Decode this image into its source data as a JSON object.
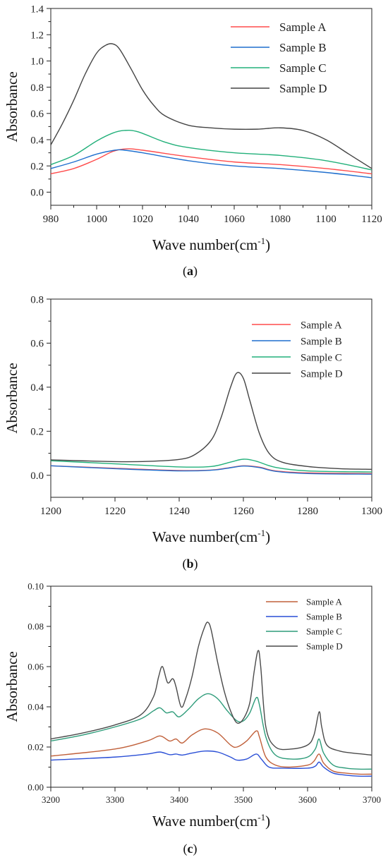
{
  "chart_data": [
    {
      "type": "line",
      "panel_label": "a",
      "xlabel": "Wave number(cm",
      "xlabel_sup": "-1",
      "xlabel_close": ")",
      "ylabel": "Absorbance",
      "xlim": [
        980,
        1120
      ],
      "ylim": [
        -0.1,
        1.4
      ],
      "xticks": [
        980,
        1000,
        1020,
        1040,
        1060,
        1080,
        1100,
        1120
      ],
      "yticks": [
        0.0,
        0.2,
        0.4,
        0.6,
        0.8,
        1.0,
        1.2,
        1.4
      ],
      "ytick_labels": [
        "0.0",
        "0.2",
        "0.4",
        "0.6",
        "0.8",
        "1.0",
        "1.2",
        "1.4"
      ],
      "legend_position": "top-right",
      "series": [
        {
          "name": "Sample A",
          "color": "#ff4b4b",
          "points": [
            [
              980,
              0.14
            ],
            [
              990,
              0.18
            ],
            [
              1000,
              0.25
            ],
            [
              1007,
              0.31
            ],
            [
              1013,
              0.33
            ],
            [
              1020,
              0.32
            ],
            [
              1040,
              0.27
            ],
            [
              1060,
              0.23
            ],
            [
              1080,
              0.21
            ],
            [
              1100,
              0.18
            ],
            [
              1120,
              0.14
            ]
          ]
        },
        {
          "name": "Sample B",
          "color": "#1f6fce",
          "points": [
            [
              980,
              0.18
            ],
            [
              990,
              0.23
            ],
            [
              1000,
              0.29
            ],
            [
              1008,
              0.32
            ],
            [
              1012,
              0.32
            ],
            [
              1020,
              0.3
            ],
            [
              1040,
              0.24
            ],
            [
              1060,
              0.2
            ],
            [
              1080,
              0.18
            ],
            [
              1100,
              0.15
            ],
            [
              1120,
              0.11
            ]
          ]
        },
        {
          "name": "Sample C",
          "color": "#22b07a",
          "points": [
            [
              980,
              0.21
            ],
            [
              990,
              0.28
            ],
            [
              1000,
              0.39
            ],
            [
              1007,
              0.45
            ],
            [
              1012,
              0.47
            ],
            [
              1018,
              0.46
            ],
            [
              1030,
              0.38
            ],
            [
              1040,
              0.34
            ],
            [
              1060,
              0.3
            ],
            [
              1080,
              0.28
            ],
            [
              1100,
              0.24
            ],
            [
              1120,
              0.17
            ]
          ]
        },
        {
          "name": "Sample D",
          "color": "#444444",
          "points": [
            [
              980,
              0.36
            ],
            [
              985,
              0.52
            ],
            [
              990,
              0.7
            ],
            [
              995,
              0.9
            ],
            [
              1000,
              1.06
            ],
            [
              1004,
              1.12
            ],
            [
              1007,
              1.13
            ],
            [
              1010,
              1.09
            ],
            [
              1015,
              0.94
            ],
            [
              1020,
              0.78
            ],
            [
              1025,
              0.66
            ],
            [
              1030,
              0.58
            ],
            [
              1040,
              0.51
            ],
            [
              1050,
              0.49
            ],
            [
              1060,
              0.48
            ],
            [
              1070,
              0.48
            ],
            [
              1080,
              0.49
            ],
            [
              1090,
              0.47
            ],
            [
              1100,
              0.4
            ],
            [
              1110,
              0.29
            ],
            [
              1120,
              0.18
            ]
          ]
        }
      ]
    },
    {
      "type": "line",
      "panel_label": "b",
      "xlabel": "Wave number(cm",
      "xlabel_sup": "-1",
      "xlabel_close": ")",
      "ylabel": "Absorbance",
      "xlim": [
        1200,
        1300
      ],
      "ylim": [
        -0.1,
        0.8
      ],
      "xticks": [
        1200,
        1220,
        1240,
        1260,
        1280,
        1300
      ],
      "yticks": [
        0.0,
        0.2,
        0.4,
        0.6,
        0.8
      ],
      "ytick_labels": [
        "0.0",
        "0.2",
        "0.4",
        "0.6",
        "0.8"
      ],
      "legend_position": "top-right",
      "series": [
        {
          "name": "Sample A",
          "color": "#ff4b4b",
          "points": [
            [
              1200,
              0.043
            ],
            [
              1220,
              0.032
            ],
            [
              1240,
              0.022
            ],
            [
              1250,
              0.024
            ],
            [
              1255,
              0.033
            ],
            [
              1260,
              0.043
            ],
            [
              1265,
              0.037
            ],
            [
              1270,
              0.02
            ],
            [
              1280,
              0.011
            ],
            [
              1300,
              0.008
            ]
          ]
        },
        {
          "name": "Sample B",
          "color": "#1f6fce",
          "points": [
            [
              1200,
              0.043
            ],
            [
              1220,
              0.03
            ],
            [
              1240,
              0.02
            ],
            [
              1250,
              0.023
            ],
            [
              1255,
              0.032
            ],
            [
              1260,
              0.042
            ],
            [
              1265,
              0.035
            ],
            [
              1270,
              0.018
            ],
            [
              1280,
              0.008
            ],
            [
              1300,
              0.005
            ]
          ]
        },
        {
          "name": "Sample C",
          "color": "#22b07a",
          "points": [
            [
              1200,
              0.066
            ],
            [
              1220,
              0.052
            ],
            [
              1240,
              0.038
            ],
            [
              1250,
              0.04
            ],
            [
              1256,
              0.06
            ],
            [
              1260,
              0.073
            ],
            [
              1264,
              0.064
            ],
            [
              1270,
              0.036
            ],
            [
              1280,
              0.02
            ],
            [
              1300,
              0.015
            ]
          ]
        },
        {
          "name": "Sample D",
          "color": "#444444",
          "points": [
            [
              1200,
              0.07
            ],
            [
              1220,
              0.062
            ],
            [
              1230,
              0.063
            ],
            [
              1240,
              0.072
            ],
            [
              1245,
              0.095
            ],
            [
              1250,
              0.16
            ],
            [
              1253,
              0.26
            ],
            [
              1256,
              0.4
            ],
            [
              1258,
              0.465
            ],
            [
              1260,
              0.44
            ],
            [
              1262,
              0.34
            ],
            [
              1265,
              0.19
            ],
            [
              1268,
              0.1
            ],
            [
              1272,
              0.06
            ],
            [
              1280,
              0.04
            ],
            [
              1290,
              0.03
            ],
            [
              1300,
              0.027
            ]
          ]
        }
      ]
    },
    {
      "type": "line",
      "panel_label": "c",
      "xlabel": "Wave number(cm",
      "xlabel_sup": "-1",
      "xlabel_close": ")",
      "ylabel": "Absorbance",
      "xlim": [
        3200,
        3700
      ],
      "ylim": [
        0.0,
        0.1
      ],
      "xticks": [
        3200,
        3300,
        3400,
        3500,
        3600,
        3700
      ],
      "yticks": [
        0.0,
        0.02,
        0.04,
        0.06,
        0.08,
        0.1
      ],
      "ytick_labels": [
        "0.00",
        "0.02",
        "0.04",
        "0.06",
        "0.08",
        "0.10"
      ],
      "legend_position": "top-right",
      "series": [
        {
          "name": "Sample A",
          "color": "#c0603a",
          "points": [
            [
              3200,
              0.0155
            ],
            [
              3300,
              0.019
            ],
            [
              3350,
              0.023
            ],
            [
              3370,
              0.0255
            ],
            [
              3385,
              0.023
            ],
            [
              3395,
              0.024
            ],
            [
              3405,
              0.022
            ],
            [
              3420,
              0.026
            ],
            [
              3440,
              0.029
            ],
            [
              3460,
              0.027
            ],
            [
              3480,
              0.021
            ],
            [
              3490,
              0.02
            ],
            [
              3505,
              0.023
            ],
            [
              3520,
              0.028
            ],
            [
              3525,
              0.025
            ],
            [
              3535,
              0.015
            ],
            [
              3550,
              0.011
            ],
            [
              3570,
              0.01
            ],
            [
              3600,
              0.011
            ],
            [
              3610,
              0.013
            ],
            [
              3618,
              0.0165
            ],
            [
              3625,
              0.012
            ],
            [
              3640,
              0.008
            ],
            [
              3660,
              0.007
            ],
            [
              3680,
              0.0065
            ],
            [
              3700,
              0.0065
            ]
          ]
        },
        {
          "name": "Sample B",
          "color": "#2a4fd6",
          "points": [
            [
              3200,
              0.0135
            ],
            [
              3300,
              0.015
            ],
            [
              3350,
              0.0165
            ],
            [
              3370,
              0.0175
            ],
            [
              3385,
              0.0162
            ],
            [
              3395,
              0.0165
            ],
            [
              3405,
              0.016
            ],
            [
              3420,
              0.017
            ],
            [
              3440,
              0.018
            ],
            [
              3460,
              0.0175
            ],
            [
              3480,
              0.015
            ],
            [
              3490,
              0.0135
            ],
            [
              3505,
              0.014
            ],
            [
              3520,
              0.0165
            ],
            [
              3528,
              0.014
            ],
            [
              3540,
              0.01
            ],
            [
              3560,
              0.0095
            ],
            [
              3600,
              0.0095
            ],
            [
              3612,
              0.0105
            ],
            [
              3618,
              0.0125
            ],
            [
              3625,
              0.01
            ],
            [
              3640,
              0.007
            ],
            [
              3660,
              0.006
            ],
            [
              3680,
              0.0055
            ],
            [
              3700,
              0.0055
            ]
          ]
        },
        {
          "name": "Sample C",
          "color": "#2e9c7a",
          "points": [
            [
              3200,
              0.023
            ],
            [
              3250,
              0.026
            ],
            [
              3300,
              0.03
            ],
            [
              3340,
              0.034
            ],
            [
              3360,
              0.038
            ],
            [
              3370,
              0.0395
            ],
            [
              3380,
              0.037
            ],
            [
              3390,
              0.0375
            ],
            [
              3400,
              0.035
            ],
            [
              3415,
              0.039
            ],
            [
              3430,
              0.044
            ],
            [
              3445,
              0.0465
            ],
            [
              3460,
              0.044
            ],
            [
              3475,
              0.038
            ],
            [
              3490,
              0.033
            ],
            [
              3500,
              0.033
            ],
            [
              3510,
              0.037
            ],
            [
              3520,
              0.0445
            ],
            [
              3525,
              0.041
            ],
            [
              3535,
              0.025
            ],
            [
              3550,
              0.016
            ],
            [
              3575,
              0.014
            ],
            [
              3600,
              0.015
            ],
            [
              3612,
              0.019
            ],
            [
              3618,
              0.024
            ],
            [
              3625,
              0.017
            ],
            [
              3640,
              0.011
            ],
            [
              3660,
              0.0095
            ],
            [
              3680,
              0.009
            ],
            [
              3700,
              0.009
            ]
          ]
        },
        {
          "name": "Sample D",
          "color": "#4a4a4a",
          "points": [
            [
              3200,
              0.024
            ],
            [
              3250,
              0.027
            ],
            [
              3300,
              0.031
            ],
            [
              3340,
              0.036
            ],
            [
              3360,
              0.045
            ],
            [
              3368,
              0.055
            ],
            [
              3374,
              0.06
            ],
            [
              3382,
              0.052
            ],
            [
              3390,
              0.054
            ],
            [
              3395,
              0.05
            ],
            [
              3403,
              0.04
            ],
            [
              3410,
              0.044
            ],
            [
              3420,
              0.055
            ],
            [
              3430,
              0.07
            ],
            [
              3440,
              0.08
            ],
            [
              3445,
              0.082
            ],
            [
              3450,
              0.078
            ],
            [
              3460,
              0.062
            ],
            [
              3470,
              0.048
            ],
            [
              3480,
              0.038
            ],
            [
              3490,
              0.032
            ],
            [
              3500,
              0.034
            ],
            [
              3510,
              0.042
            ],
            [
              3517,
              0.058
            ],
            [
              3523,
              0.068
            ],
            [
              3527,
              0.06
            ],
            [
              3535,
              0.03
            ],
            [
              3550,
              0.02
            ],
            [
              3575,
              0.019
            ],
            [
              3600,
              0.021
            ],
            [
              3610,
              0.026
            ],
            [
              3618,
              0.0375
            ],
            [
              3622,
              0.03
            ],
            [
              3630,
              0.021
            ],
            [
              3650,
              0.018
            ],
            [
              3670,
              0.017
            ],
            [
              3700,
              0.016
            ]
          ]
        }
      ]
    }
  ]
}
